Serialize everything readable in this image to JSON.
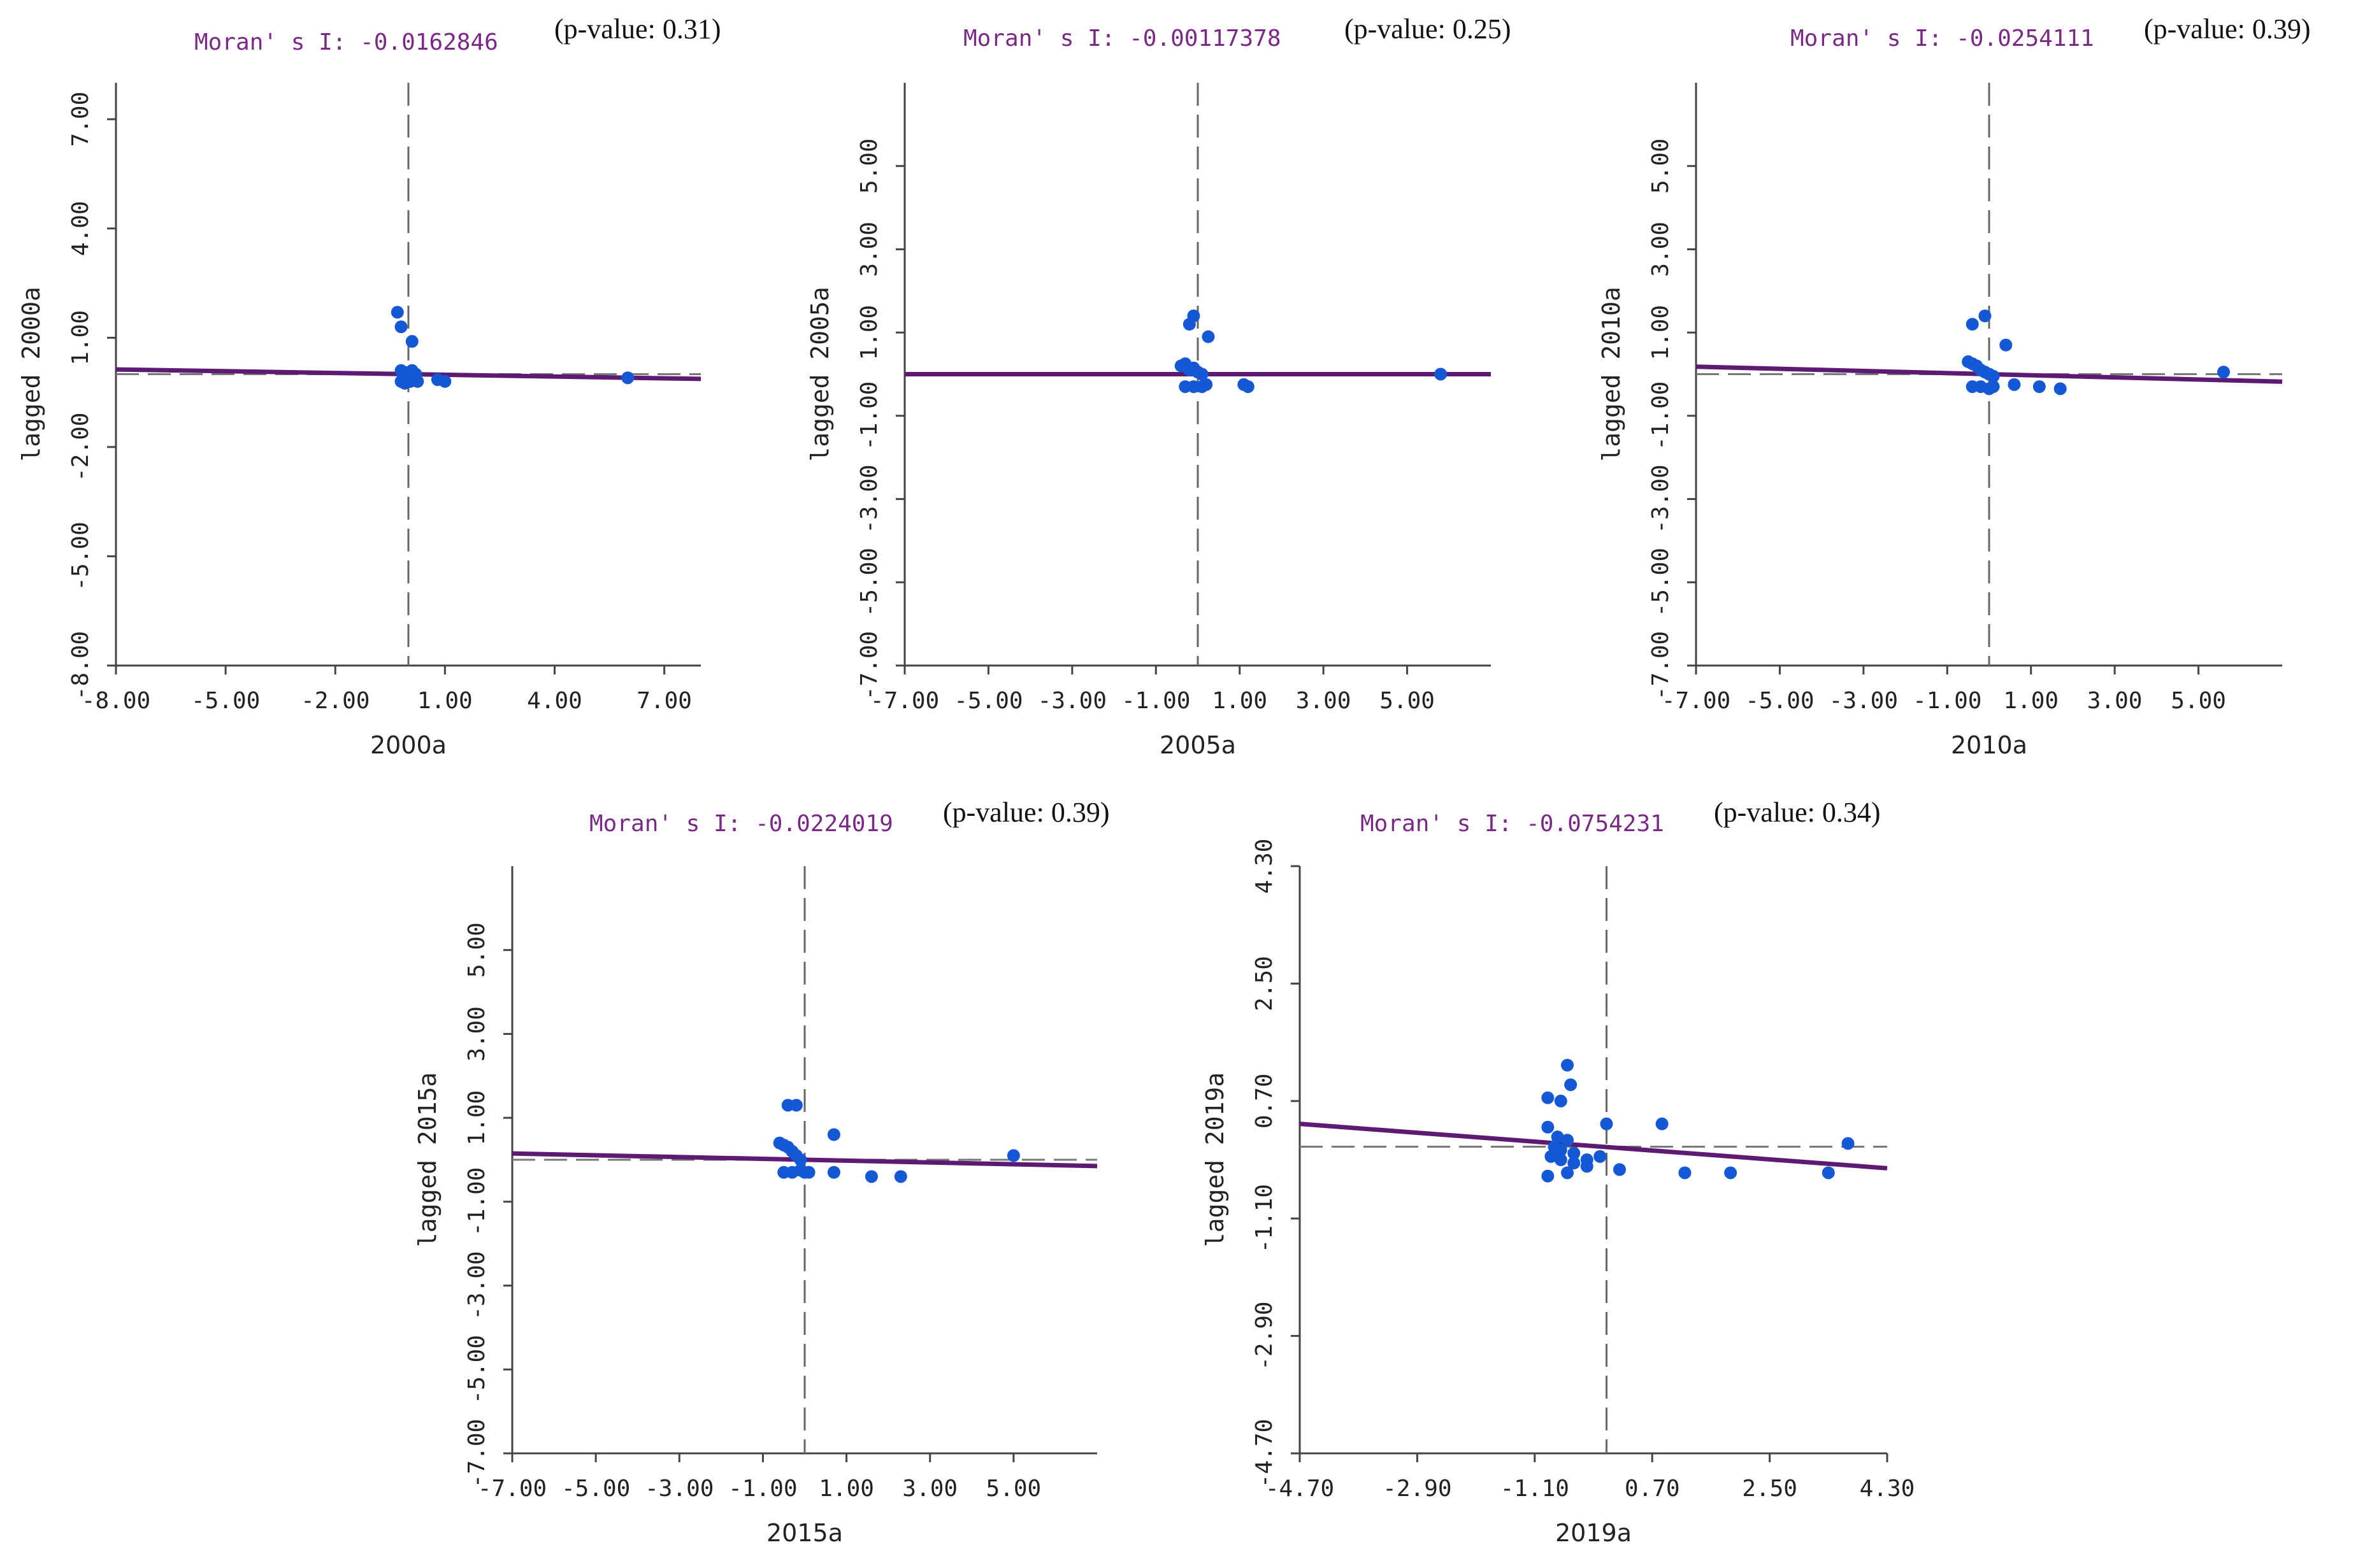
{
  "colors": {
    "point": "#1558d6",
    "regression_line": "#5c1a72",
    "moran_text": "#7a2a86",
    "axis": "#444444"
  },
  "chart_data": [
    {
      "type": "scatter",
      "title": "Moran' s I: -0.0162846",
      "pvalue_label": "(p-value: 0.31)",
      "xlabel": "2000a",
      "ylabel": "lagged 2000a",
      "xlim": [
        -8.0,
        8.0
      ],
      "ylim": [
        -8.0,
        8.0
      ],
      "xticks": [
        "-8.00",
        "-5.00",
        "-2.00",
        "1.00",
        "4.00",
        "7.00"
      ],
      "xtick_values": [
        -8,
        -5,
        -2,
        1,
        4,
        7
      ],
      "yticks": [
        "-8.00",
        "-5.00",
        "-2.00",
        "1.00",
        "4.00",
        "7.00"
      ],
      "ytick_values": [
        -8,
        -5,
        -2,
        1,
        4,
        7
      ],
      "regression": {
        "x": [
          -8.0,
          8.0
        ],
        "y": [
          0.13,
          -0.13
        ]
      },
      "points": {
        "x": [
          -0.3,
          -0.2,
          0.1,
          -0.2,
          -0.1,
          0.0,
          0.1,
          0.2,
          -0.2,
          -0.1,
          0.05,
          0.15,
          0.25,
          0.8,
          1.0,
          6.0
        ],
        "y": [
          1.7,
          1.3,
          0.9,
          0.1,
          0.05,
          0.0,
          0.1,
          0.0,
          -0.2,
          -0.25,
          -0.2,
          -0.15,
          -0.2,
          -0.15,
          -0.2,
          -0.1
        ]
      }
    },
    {
      "type": "scatter",
      "title": "Moran' s I: -0.00117378",
      "pvalue_label": "(p-value: 0.25)",
      "xlabel": "2005a",
      "ylabel": "lagged 2005a",
      "xlim": [
        -7.0,
        7.0
      ],
      "ylim": [
        -7.0,
        7.0
      ],
      "xticks": [
        "-7.00",
        "-5.00",
        "-3.00",
        "-1.00",
        "1.00",
        "3.00",
        "5.00"
      ],
      "xtick_values": [
        -7,
        -5,
        -3,
        -1,
        1,
        3,
        5
      ],
      "yticks": [
        "-7.00",
        "-5.00",
        "-3.00",
        "-1.00",
        "1.00",
        "3.00",
        "5.00"
      ],
      "ytick_values": [
        -7,
        -5,
        -3,
        -1,
        1,
        3,
        5
      ],
      "regression": {
        "x": [
          -7.0,
          7.0
        ],
        "y": [
          0.0,
          0.0
        ]
      },
      "points": {
        "x": [
          -0.2,
          -0.1,
          0.25,
          -0.4,
          -0.3,
          -0.2,
          -0.1,
          0.0,
          0.1,
          -0.3,
          -0.1,
          0.1,
          0.2,
          1.1,
          1.2,
          5.8
        ],
        "y": [
          1.2,
          1.4,
          0.9,
          0.2,
          0.25,
          0.1,
          0.15,
          0.05,
          0.0,
          -0.3,
          -0.3,
          -0.3,
          -0.25,
          -0.25,
          -0.3,
          0.0
        ]
      }
    },
    {
      "type": "scatter",
      "title": "Moran' s I: -0.0254111",
      "pvalue_label": "(p-value: 0.39)",
      "xlabel": "2010a",
      "ylabel": "lagged 2010a",
      "xlim": [
        -7.0,
        7.0
      ],
      "ylim": [
        -7.0,
        7.0
      ],
      "xticks": [
        "-7.00",
        "-5.00",
        "-3.00",
        "-1.00",
        "1.00",
        "3.00",
        "5.00"
      ],
      "xtick_values": [
        -7,
        -5,
        -3,
        -1,
        1,
        3,
        5
      ],
      "yticks": [
        "-7.00",
        "-5.00",
        "-3.00",
        "-1.00",
        "1.00",
        "3.00",
        "5.00"
      ],
      "ytick_values": [
        -7,
        -5,
        -3,
        -1,
        1,
        3,
        5
      ],
      "regression": {
        "x": [
          -7.0,
          7.0
        ],
        "y": [
          0.18,
          -0.18
        ]
      },
      "points": {
        "x": [
          -0.4,
          -0.1,
          0.4,
          -0.5,
          -0.4,
          -0.3,
          -0.2,
          -0.1,
          0.0,
          0.1,
          -0.4,
          -0.2,
          0.0,
          0.1,
          0.6,
          1.2,
          1.7,
          5.6
        ],
        "y": [
          1.2,
          1.4,
          0.7,
          0.3,
          0.25,
          0.2,
          0.1,
          0.05,
          0.0,
          -0.05,
          -0.3,
          -0.3,
          -0.35,
          -0.3,
          -0.25,
          -0.3,
          -0.35,
          0.05
        ]
      }
    },
    {
      "type": "scatter",
      "title": "Moran' s I: -0.0224019",
      "pvalue_label": "(p-value: 0.39)",
      "xlabel": "2015a",
      "ylabel": "lagged 2015a",
      "xlim": [
        -7.0,
        7.0
      ],
      "ylim": [
        -7.0,
        7.0
      ],
      "xticks": [
        "-7.00",
        "-5.00",
        "-3.00",
        "-1.00",
        "1.00",
        "3.00",
        "5.00"
      ],
      "xtick_values": [
        -7,
        -5,
        -3,
        -1,
        1,
        3,
        5
      ],
      "yticks": [
        "-7.00",
        "-5.00",
        "-3.00",
        "-1.00",
        "1.00",
        "3.00",
        "5.00"
      ],
      "ytick_values": [
        -7,
        -5,
        -3,
        -1,
        1,
        3,
        5
      ],
      "regression": {
        "x": [
          -7.0,
          7.0
        ],
        "y": [
          0.15,
          -0.15
        ]
      },
      "points": {
        "x": [
          -0.4,
          -0.2,
          0.7,
          -0.6,
          -0.5,
          -0.4,
          -0.3,
          -0.2,
          -0.1,
          -0.5,
          -0.3,
          -0.1,
          0.0,
          0.1,
          0.7,
          1.6,
          2.3,
          5.0
        ],
        "y": [
          1.3,
          1.3,
          0.6,
          0.4,
          0.35,
          0.3,
          0.2,
          0.1,
          0.0,
          -0.3,
          -0.3,
          -0.25,
          -0.3,
          -0.3,
          -0.3,
          -0.4,
          -0.4,
          0.1
        ]
      }
    },
    {
      "type": "scatter",
      "title": "Moran' s I: -0.0754231",
      "pvalue_label": "(p-value: 0.34)",
      "xlabel": "2019a",
      "ylabel": "lagged 2019a",
      "xlim": [
        -4.7,
        4.3
      ],
      "ylim": [
        -4.7,
        4.3
      ],
      "xticks": [
        "-4.70",
        "-2.90",
        "-1.10",
        "0.70",
        "2.50",
        "4.30"
      ],
      "xtick_values": [
        -4.7,
        -2.9,
        -1.1,
        0.7,
        2.5,
        4.3
      ],
      "yticks": [
        "-4.70",
        "-2.90",
        "-1.10",
        "0.70",
        "2.50",
        "4.30"
      ],
      "ytick_values": [
        -4.7,
        -2.9,
        -1.1,
        0.7,
        2.5,
        4.3
      ],
      "regression": {
        "x": [
          -4.7,
          4.3
        ],
        "y": [
          0.35,
          -0.33
        ]
      },
      "points": {
        "x": [
          -0.6,
          -0.9,
          -0.7,
          -0.55,
          0.0,
          0.85,
          -0.9,
          -0.75,
          -0.6,
          -0.8,
          -0.7,
          -0.5,
          -0.85,
          -0.7,
          -0.5,
          -0.3,
          -0.1,
          -0.9,
          -0.6,
          -0.3,
          0.2,
          1.2,
          1.9,
          3.4,
          3.7
        ],
        "y": [
          1.25,
          0.75,
          0.7,
          0.95,
          0.35,
          0.35,
          0.3,
          0.15,
          0.1,
          0.0,
          -0.05,
          -0.1,
          -0.15,
          -0.2,
          -0.25,
          -0.2,
          -0.15,
          -0.45,
          -0.4,
          -0.3,
          -0.35,
          -0.4,
          -0.4,
          -0.4,
          0.05
        ]
      }
    }
  ]
}
